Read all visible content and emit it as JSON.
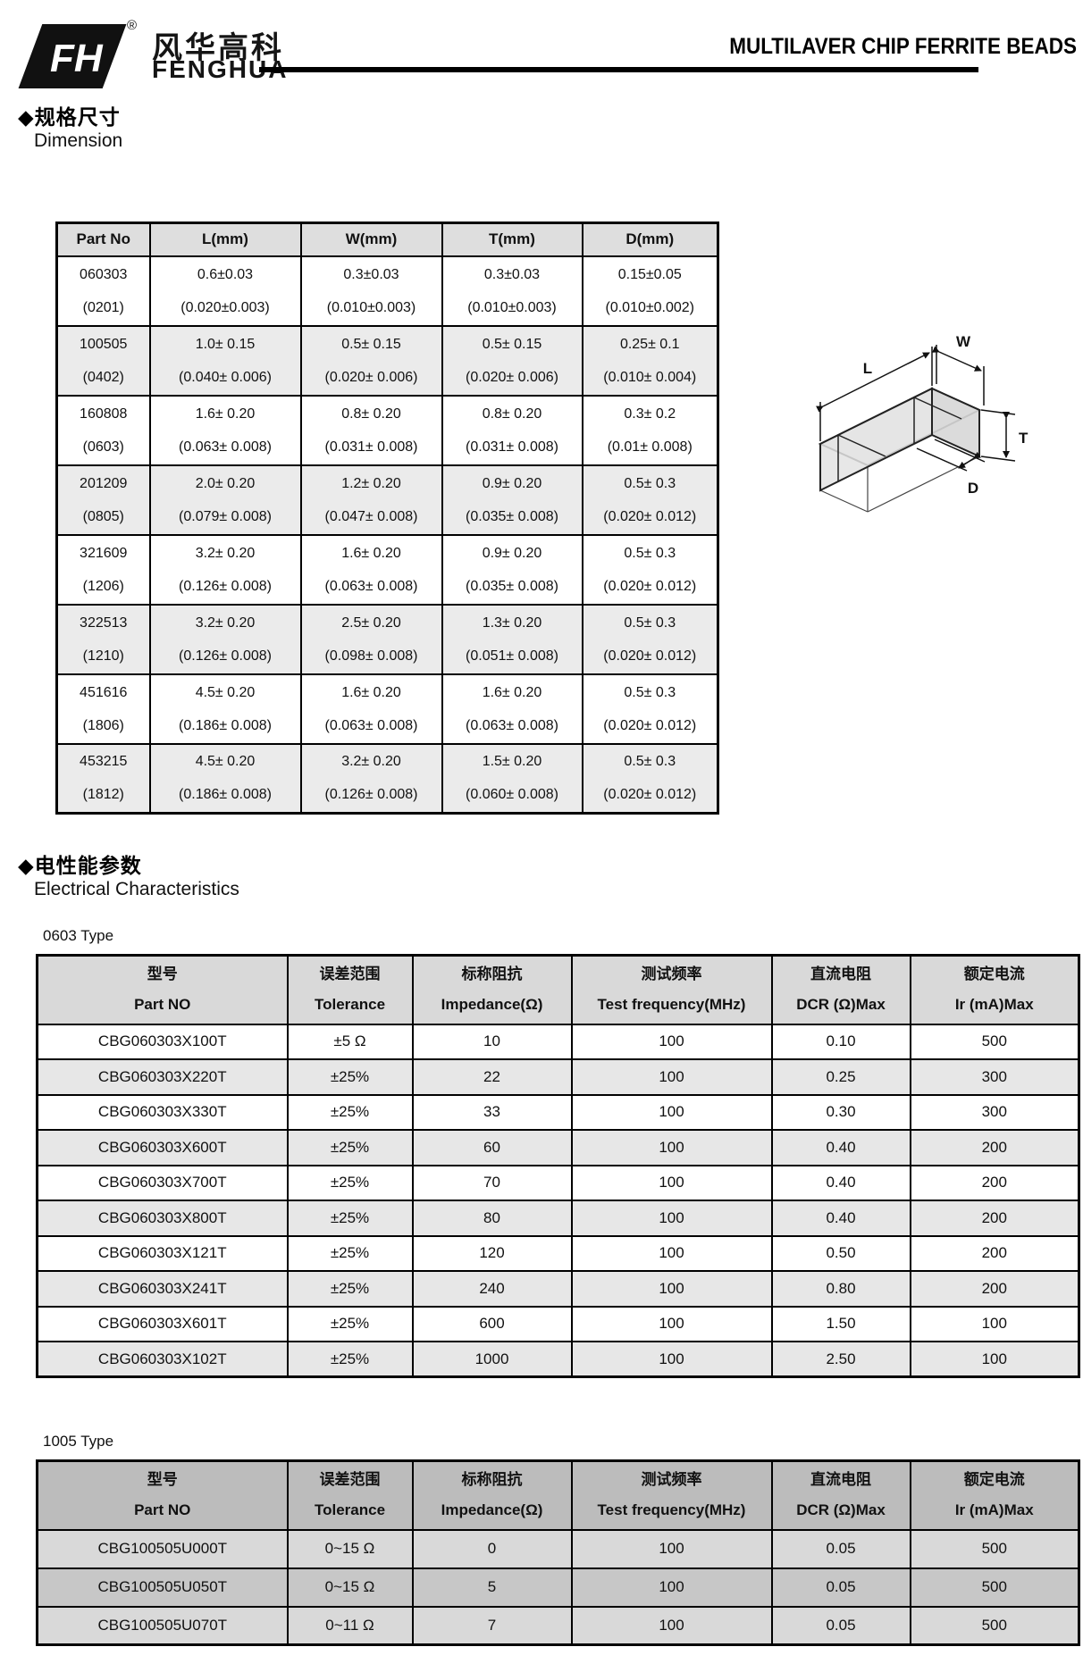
{
  "header": {
    "logo_cn": "风华高科",
    "logo_en": "FENGHUA",
    "registered": "®",
    "title": "MULTILAVER CHIP FERRITE BEADS"
  },
  "colors": {
    "dim_header_bg": "#dedede",
    "dim_alt_row_bg": "#ebebeb",
    "e0603_header_bg": "#d9d9d9",
    "e0603_alt_row_bg": "#e7e7e7",
    "e1005_header_bg": "#bcbcbc",
    "e1005_row_light": "#d9d9d9",
    "e1005_row_dark": "#c7c7c7",
    "border": "#000000"
  },
  "dimension": {
    "heading_cn": "◆规格尺寸",
    "heading_en": "Dimension",
    "table": {
      "columns": [
        "Part No",
        "L(mm)",
        "W(mm)",
        "T(mm)",
        "D(mm)"
      ],
      "rows": [
        {
          "part_no": "060303",
          "code": "(0201)",
          "dims": [
            [
              "0.6±0.03",
              "(0.020±0.003)"
            ],
            [
              "0.3±0.03",
              "(0.010±0.003)"
            ],
            [
              "0.3±0.03",
              "(0.010±0.003)"
            ],
            [
              "0.15±0.05",
              "(0.010±0.002)"
            ]
          ]
        },
        {
          "part_no": "100505",
          "code": "(0402)",
          "dims": [
            [
              "1.0± 0.15",
              "(0.040± 0.006)"
            ],
            [
              "0.5± 0.15",
              "(0.020± 0.006)"
            ],
            [
              "0.5± 0.15",
              "(0.020± 0.006)"
            ],
            [
              "0.25± 0.1",
              "(0.010± 0.004)"
            ]
          ]
        },
        {
          "part_no": "160808",
          "code": "(0603)",
          "dims": [
            [
              "1.6± 0.20",
              "(0.063± 0.008)"
            ],
            [
              "0.8± 0.20",
              "(0.031± 0.008)"
            ],
            [
              "0.8± 0.20",
              "(0.031± 0.008)"
            ],
            [
              "0.3± 0.2",
              "(0.01± 0.008)"
            ]
          ]
        },
        {
          "part_no": "201209",
          "code": "(0805)",
          "dims": [
            [
              "2.0± 0.20",
              "(0.079± 0.008)"
            ],
            [
              "1.2± 0.20",
              "(0.047± 0.008)"
            ],
            [
              "0.9± 0.20",
              "(0.035± 0.008)"
            ],
            [
              "0.5± 0.3",
              "(0.020± 0.012)"
            ]
          ]
        },
        {
          "part_no": "321609",
          "code": "(1206)",
          "dims": [
            [
              "3.2± 0.20",
              "(0.126± 0.008)"
            ],
            [
              "1.6± 0.20",
              "(0.063± 0.008)"
            ],
            [
              "0.9± 0.20",
              "(0.035± 0.008)"
            ],
            [
              "0.5± 0.3",
              "(0.020± 0.012)"
            ]
          ]
        },
        {
          "part_no": "322513",
          "code": "(1210)",
          "dims": [
            [
              "3.2± 0.20",
              "(0.126± 0.008)"
            ],
            [
              "2.5± 0.20",
              "(0.098± 0.008)"
            ],
            [
              "1.3± 0.20",
              "(0.051± 0.008)"
            ],
            [
              "0.5± 0.3",
              "(0.020± 0.012)"
            ]
          ]
        },
        {
          "part_no": "451616",
          "code": "(1806)",
          "dims": [
            [
              "4.5± 0.20",
              "(0.186± 0.008)"
            ],
            [
              "1.6± 0.20",
              "(0.063± 0.008)"
            ],
            [
              "1.6± 0.20",
              "(0.063± 0.008)"
            ],
            [
              "0.5± 0.3",
              "(0.020± 0.012)"
            ]
          ]
        },
        {
          "part_no": "453215",
          "code": "(1812)",
          "dims": [
            [
              "4.5± 0.20",
              "(0.186± 0.008)"
            ],
            [
              "3.2± 0.20",
              "(0.126± 0.008)"
            ],
            [
              "1.5± 0.20",
              "(0.060± 0.008)"
            ],
            [
              "0.5± 0.3",
              "(0.020± 0.012)"
            ]
          ]
        }
      ]
    },
    "diagram_labels": [
      "L",
      "W",
      "T",
      "D"
    ]
  },
  "electrical": {
    "heading_cn": "◆电性能参数",
    "heading_en": "Electrical Characteristics",
    "columns_cn": [
      "型号",
      "误差范围",
      "标称阻抗",
      "测试频率",
      "直流电阻",
      "额定电流"
    ],
    "columns_en": [
      "Part NO",
      "Tolerance",
      "Impedance(Ω)",
      "Test frequency(MHz)",
      "DCR (Ω)Max",
      "Ir (mA)Max"
    ],
    "table_0603": {
      "type_label": "0603 Type",
      "rows": [
        [
          "CBG060303X100T",
          "±5 Ω",
          "10",
          "100",
          "0.10",
          "500"
        ],
        [
          "CBG060303X220T",
          "±25%",
          "22",
          "100",
          "0.25",
          "300"
        ],
        [
          "CBG060303X330T",
          "±25%",
          "33",
          "100",
          "0.30",
          "300"
        ],
        [
          "CBG060303X600T",
          "±25%",
          "60",
          "100",
          "0.40",
          "200"
        ],
        [
          "CBG060303X700T",
          "±25%",
          "70",
          "100",
          "0.40",
          "200"
        ],
        [
          "CBG060303X800T",
          "±25%",
          "80",
          "100",
          "0.40",
          "200"
        ],
        [
          "CBG060303X121T",
          "±25%",
          "120",
          "100",
          "0.50",
          "200"
        ],
        [
          "CBG060303X241T",
          "±25%",
          "240",
          "100",
          "0.80",
          "200"
        ],
        [
          "CBG060303X601T",
          "±25%",
          "600",
          "100",
          "1.50",
          "100"
        ],
        [
          "CBG060303X102T",
          "±25%",
          "1000",
          "100",
          "2.50",
          "100"
        ]
      ]
    },
    "table_1005": {
      "type_label": "1005 Type",
      "rows": [
        [
          "CBG100505U000T",
          "0~15 Ω",
          "0",
          "100",
          "0.05",
          "500"
        ],
        [
          "CBG100505U050T",
          "0~15 Ω",
          "5",
          "100",
          "0.05",
          "500"
        ],
        [
          "CBG100505U070T",
          "0~11 Ω",
          "7",
          "100",
          "0.05",
          "500"
        ]
      ]
    }
  }
}
